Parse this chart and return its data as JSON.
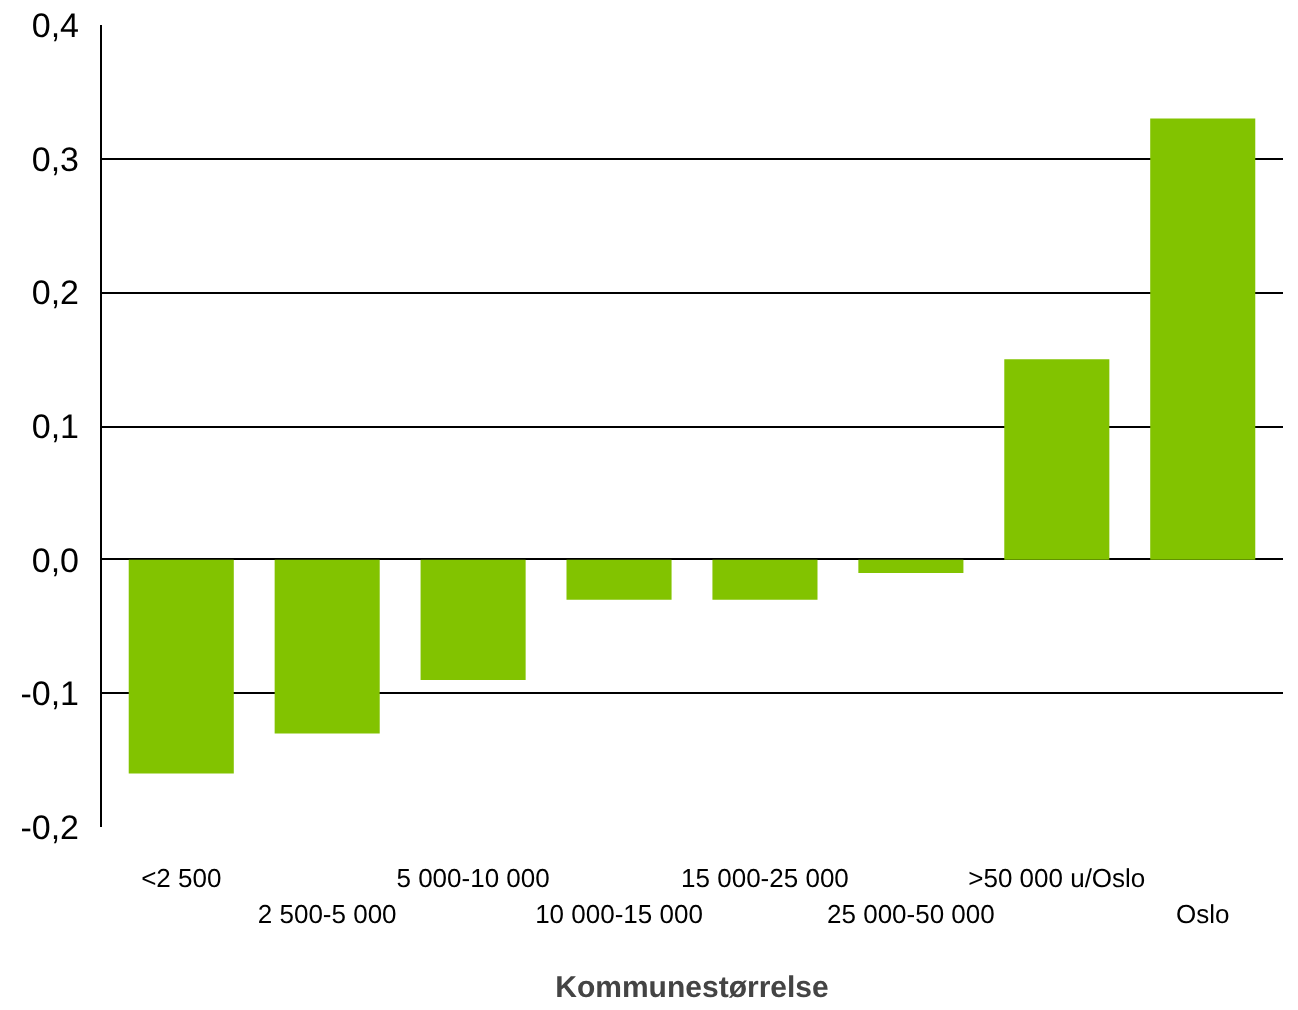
{
  "chart_data": {
    "type": "bar",
    "xlabel": "Kommunestørrelse",
    "categories": [
      "<2 500",
      "2 500-5 000",
      "5 000-10 000",
      "10 000-15 000",
      "15 000-25 000",
      "25 000-50 000",
      ">50 000 u/Oslo",
      "Oslo"
    ],
    "values": [
      -0.16,
      -0.13,
      -0.09,
      -0.03,
      -0.03,
      -0.01,
      0.15,
      0.33
    ],
    "color": "#82c300",
    "ylim": [
      -0.2,
      0.4
    ],
    "yticks": [
      {
        "value": -0.2,
        "label": "-0,2"
      },
      {
        "value": -0.1,
        "label": "-0,1"
      },
      {
        "value": 0,
        "label": "0,0"
      },
      {
        "value": 0.1,
        "label": "0,1"
      },
      {
        "value": 0.2,
        "label": "0,2"
      },
      {
        "value": 0.3,
        "label": "0,3"
      },
      {
        "value": 0.4,
        "label": "0,4"
      }
    ],
    "grid": "y"
  }
}
